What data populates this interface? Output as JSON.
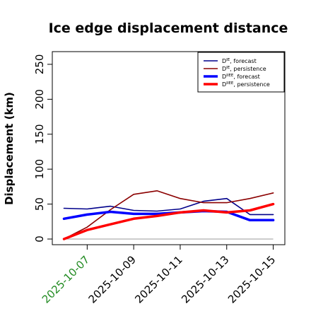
{
  "chart_data": {
    "type": "line",
    "title": "Ice edge displacement distance",
    "ylabel": "Displacement (km)",
    "xlabel": "",
    "ylim": [
      0,
      255
    ],
    "grid": false,
    "legend_position": "top-right",
    "x": [
      "2025-10-06",
      "2025-10-07",
      "2025-10-08",
      "2025-10-09",
      "2025-10-10",
      "2025-10-11",
      "2025-10-12",
      "2025-10-13",
      "2025-10-14",
      "2025-10-15"
    ],
    "x_ticks": [
      "2025-10-07",
      "2025-10-09",
      "2025-10-11",
      "2025-10-13",
      "2025-10-15"
    ],
    "highlighted_tick": "2025-10-07",
    "highlight_color": "#228b22",
    "y_ticks": [
      0,
      50,
      100,
      150,
      200,
      250
    ],
    "reference_line": 0,
    "series": [
      {
        "name": "DIE, forecast",
        "legend_main": "D",
        "legend_sup": "IE",
        "legend_text": ", forecast",
        "color": "#00008b",
        "width": "thin",
        "values": [
          44,
          43,
          47,
          41,
          40,
          43,
          54,
          58,
          35,
          35
        ]
      },
      {
        "name": "DIE, persistence",
        "legend_main": "D",
        "legend_sup": "IE",
        "legend_text": ", persistence",
        "color": "#8b0000",
        "width": "thin",
        "values": [
          0,
          17,
          42,
          64,
          69,
          58,
          52,
          52,
          58,
          66
        ]
      },
      {
        "name": "DIIEE, forecast",
        "legend_main": "D",
        "legend_sup": "IIEE",
        "legend_text": ", forecast",
        "color": "#0000ff",
        "width": "thick",
        "values": [
          29,
          35,
          39,
          36,
          36,
          38,
          40,
          39,
          27,
          27
        ]
      },
      {
        "name": "DIIEE, persistence",
        "legend_main": "D",
        "legend_sup": "IIEE",
        "legend_text": ", persistence",
        "color": "#ff0000",
        "width": "thick",
        "values": [
          0,
          13,
          21,
          29,
          33,
          38,
          41,
          38,
          41,
          50
        ]
      }
    ]
  }
}
